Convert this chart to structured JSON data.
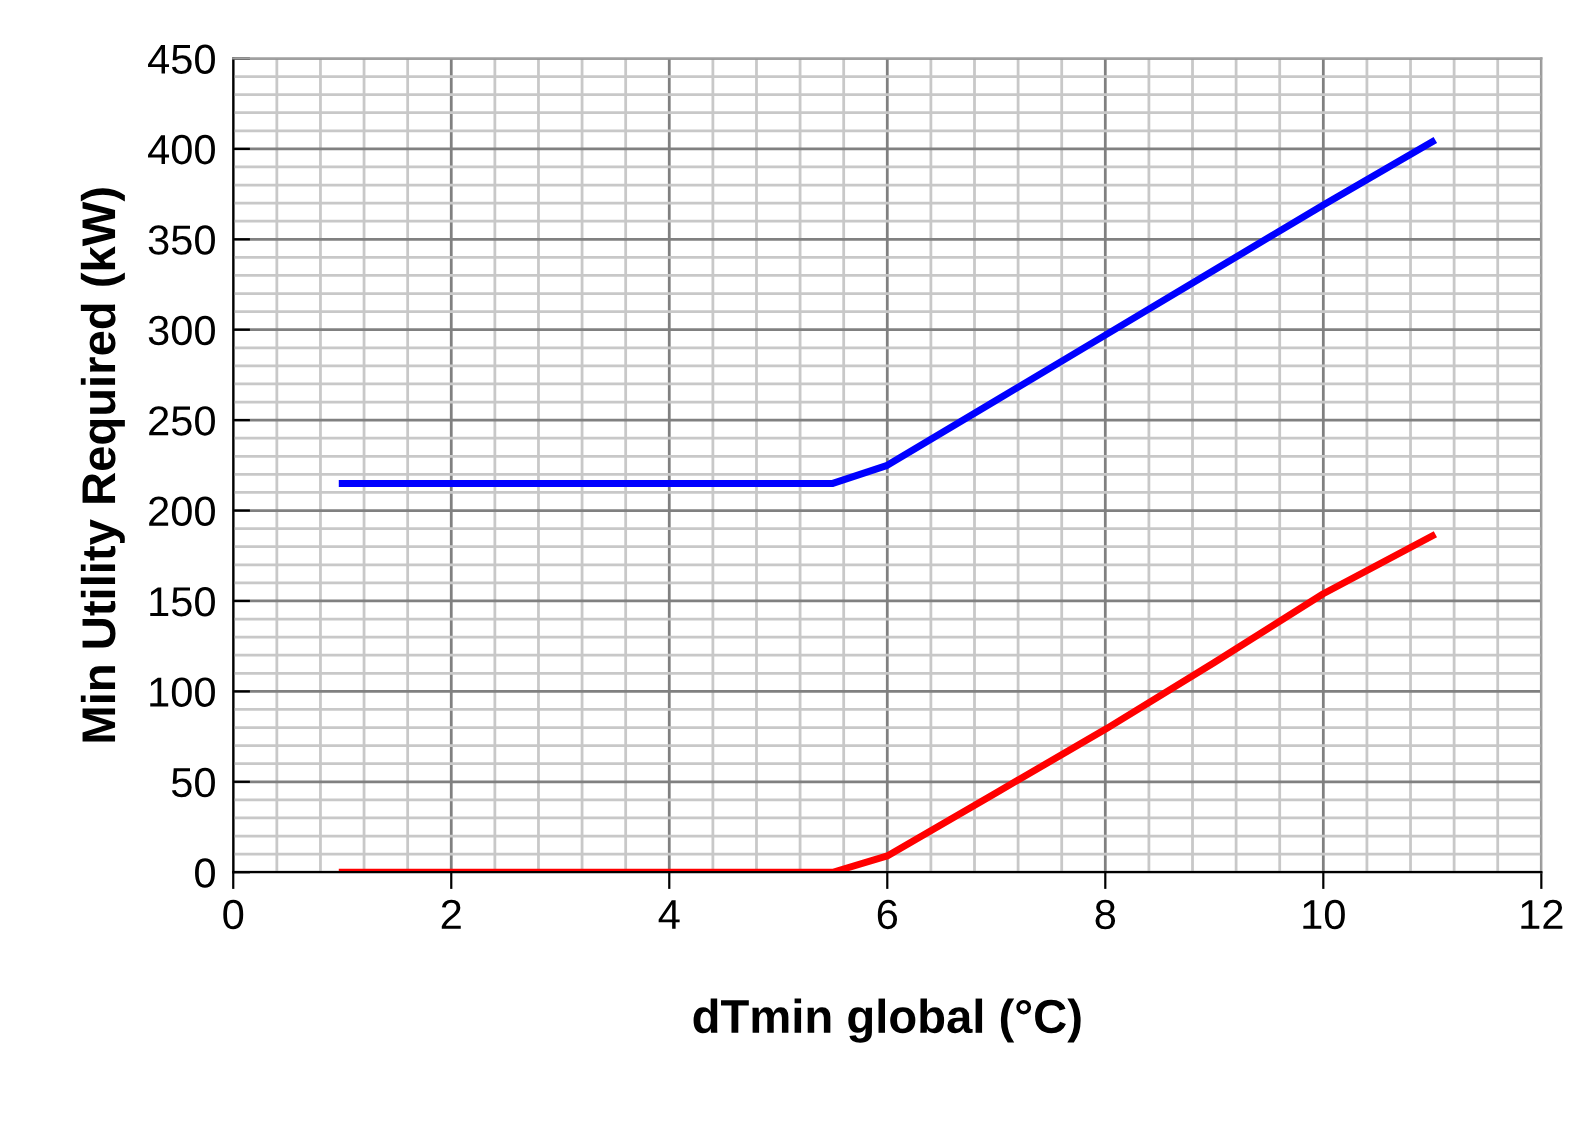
{
  "chart_data": {
    "type": "line",
    "xlabel": "dTmin global (°C)",
    "ylabel": "Min Utility Required (kW)",
    "x": [
      1,
      2,
      3,
      4,
      5,
      5.5,
      6,
      7,
      8,
      9,
      10,
      11
    ],
    "series": [
      {
        "color": "#0000ff",
        "values": [
          215,
          215,
          215,
          215,
          215,
          215,
          225,
          261,
          297,
          333,
          369,
          404
        ]
      },
      {
        "color": "#ff0000",
        "values": [
          0,
          0,
          0,
          0,
          0,
          0,
          9,
          44,
          79,
          116,
          154,
          186
        ]
      }
    ],
    "xlim": [
      0,
      12
    ],
    "xticks": [
      0,
      2,
      4,
      6,
      8,
      10,
      12
    ],
    "ylim": [
      0,
      450
    ],
    "yticks": [
      0,
      50,
      100,
      150,
      200,
      250,
      300,
      350,
      400,
      450
    ],
    "grid": true,
    "marker": "none",
    "line_style": "solid",
    "legend": false
  }
}
